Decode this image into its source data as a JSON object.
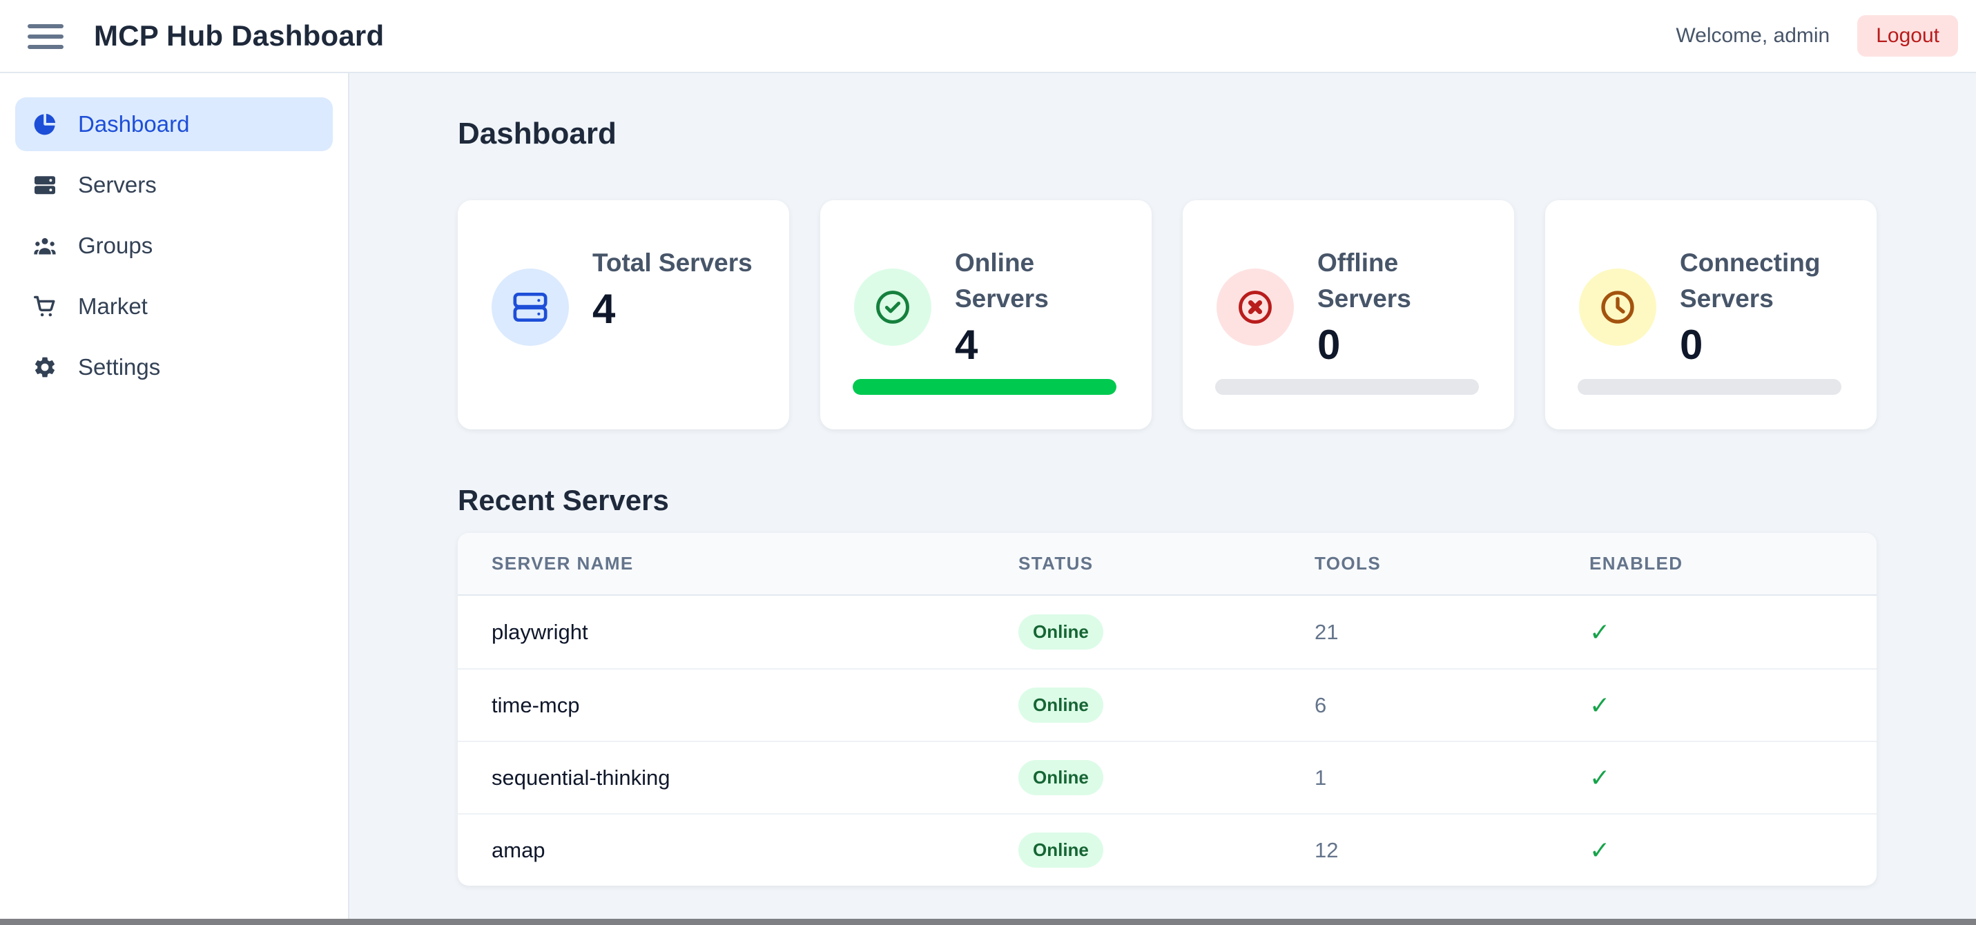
{
  "header": {
    "title": "MCP Hub Dashboard",
    "welcome": "Welcome, admin",
    "logout_label": "Logout"
  },
  "sidebar": {
    "items": [
      {
        "label": "Dashboard",
        "icon": "pie-chart-icon",
        "active": true
      },
      {
        "label": "Servers",
        "icon": "server-icon",
        "active": false
      },
      {
        "label": "Groups",
        "icon": "users-icon",
        "active": false
      },
      {
        "label": "Market",
        "icon": "cart-icon",
        "active": false
      },
      {
        "label": "Settings",
        "icon": "gear-icon",
        "active": false
      }
    ]
  },
  "main": {
    "page_title": "Dashboard",
    "stat_cards": [
      {
        "label": "Total Servers",
        "value": "4",
        "icon": "server-icon",
        "accent": "#1d4ed8",
        "accent_bg": "#dbeafe",
        "progress": null
      },
      {
        "label": "Online Servers",
        "value": "4",
        "icon": "check-circle-icon",
        "accent": "#15803d",
        "accent_bg": "#dcfce7",
        "progress": 100,
        "bar_color": "#00c950"
      },
      {
        "label": "Offline Servers",
        "value": "0",
        "icon": "x-circle-icon",
        "accent": "#b91c1c",
        "accent_bg": "#fee2e2",
        "progress": 0,
        "bar_color": "#e5e7eb"
      },
      {
        "label": "Connecting Servers",
        "value": "0",
        "icon": "clock-icon",
        "accent": "#a3530e",
        "accent_bg": "#fef9c3",
        "progress": 0,
        "bar_color": "#e5e7eb"
      }
    ],
    "recent": {
      "title": "Recent Servers",
      "columns": [
        "Server Name",
        "Status",
        "Tools",
        "Enabled"
      ],
      "rows": [
        {
          "name": "playwright",
          "status": "Online",
          "tools": "21",
          "enabled": true
        },
        {
          "name": "time-mcp",
          "status": "Online",
          "tools": "6",
          "enabled": true
        },
        {
          "name": "sequential-thinking",
          "status": "Online",
          "tools": "1",
          "enabled": true
        },
        {
          "name": "amap",
          "status": "Online",
          "tools": "12",
          "enabled": true
        }
      ],
      "enabled_glyph": "✓",
      "status_colors": {
        "online_bg": "#dcfce7",
        "online_text": "#166534"
      }
    }
  }
}
